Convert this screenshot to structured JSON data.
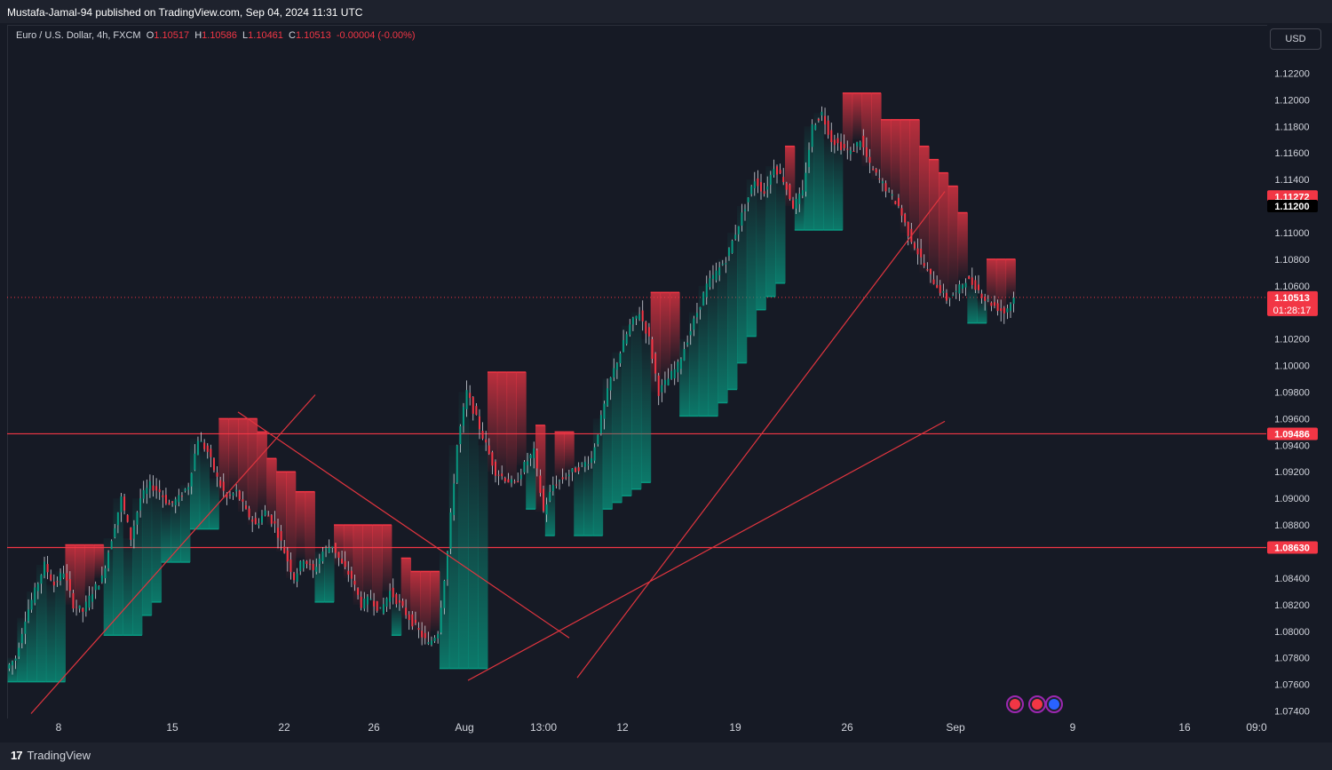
{
  "header": {
    "published": "Mustafa-Jamal-94 published on TradingView.com, Sep 04, 2024 11:31 UTC"
  },
  "legend": {
    "symbol": "Euro / U.S. Dollar, 4h, FXCM",
    "o_label": "O",
    "o_value": "1.10517",
    "h_label": "H",
    "h_value": "1.10586",
    "l_label": "L",
    "l_value": "1.10461",
    "c_label": "C",
    "c_value": "1.10513",
    "change": "-0.00004 (-0.00%)"
  },
  "currency_button": "USD",
  "brand": {
    "logo": "17",
    "name": "TradingView"
  },
  "colors": {
    "background": "#161a25",
    "bull": "#089981",
    "bear": "#f23645",
    "line": "#e0353f",
    "text": "#d1d4dc"
  },
  "chart_data": {
    "type": "candlestick",
    "symbol": "EURUSD",
    "timeframe": "4h",
    "y_ticks": [
      "1.12200",
      "1.12000",
      "1.11800",
      "1.11600",
      "1.11400",
      "1.11000",
      "1.10800",
      "1.10600",
      "1.10200",
      "1.10000",
      "1.09800",
      "1.09600",
      "1.09400",
      "1.09200",
      "1.09000",
      "1.08800",
      "1.08400",
      "1.08200",
      "1.08000",
      "1.07800",
      "1.07600",
      "1.07400"
    ],
    "x_ticks": [
      "8",
      "15",
      "22",
      "26",
      "Aug",
      "13:00",
      "12",
      "19",
      "26",
      "Sep",
      "9",
      "16",
      "09:0"
    ],
    "ylim": [
      1.0735,
      1.1235
    ],
    "price_labels": [
      {
        "text": "1.11272",
        "value": 1.11272,
        "style": "red"
      },
      {
        "text": "1.11200",
        "value": 1.112,
        "style": "black"
      },
      {
        "text": "1.10513",
        "value": 1.10513,
        "style": "red",
        "sub": "01:28:17"
      },
      {
        "text": "1.09486",
        "value": 1.09486,
        "style": "red"
      },
      {
        "text": "1.08630",
        "value": 1.0863,
        "style": "red"
      }
    ],
    "horizontal_levels": [
      1.09486,
      1.0863
    ],
    "current_price": 1.10513,
    "countdown": "01:28:17",
    "trendlines": [
      {
        "x1": 0,
        "y1": 1.0738,
        "x2": 1,
        "y2": 1.0978
      },
      {
        "x1": 0,
        "y1": 1.0965,
        "x2": 1,
        "y2": 1.0795
      },
      {
        "x1": 0,
        "y1": 1.0763,
        "x2": 1,
        "y2": 1.0958
      },
      {
        "x1": 0,
        "y1": 1.0765,
        "x2": 1,
        "y2": 1.1131
      }
    ],
    "closes": [
      1.078,
      1.081,
      1.083,
      1.085,
      1.0835,
      1.0845,
      1.082,
      1.0815,
      1.083,
      1.084,
      1.087,
      1.09,
      1.087,
      1.09,
      1.091,
      1.0905,
      1.0895,
      1.09,
      1.091,
      1.0945,
      1.0935,
      1.0915,
      1.09,
      1.0905,
      1.089,
      1.088,
      1.089,
      1.088,
      1.086,
      1.084,
      1.0855,
      1.0845,
      1.086,
      1.0865,
      1.085,
      1.084,
      1.082,
      1.0825,
      1.0815,
      1.083,
      1.082,
      1.081,
      1.08,
      1.079,
      1.08,
      1.086,
      1.094,
      1.098,
      1.096,
      1.094,
      1.092,
      1.0915,
      1.091,
      1.0925,
      1.0935,
      1.089,
      1.091,
      1.0915,
      1.092,
      1.0925,
      1.093,
      1.096,
      1.099,
      1.101,
      1.103,
      1.104,
      1.102,
      1.098,
      1.099,
      1.1,
      1.102,
      1.104,
      1.106,
      1.107,
      1.108,
      1.11,
      1.112,
      1.114,
      1.113,
      1.115,
      1.114,
      1.112,
      1.113,
      1.118,
      1.119,
      1.117,
      1.1165,
      1.116,
      1.117,
      1.115,
      1.114,
      1.113,
      1.112,
      1.11,
      1.1085,
      1.107,
      1.106,
      1.105,
      1.1055,
      1.1065,
      1.106,
      1.105,
      1.1045,
      1.104,
      1.1051
    ]
  }
}
